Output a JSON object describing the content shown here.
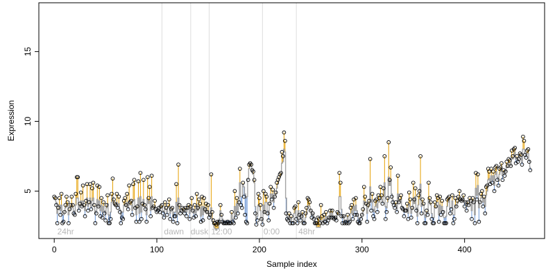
{
  "chart_data": {
    "type": "scatter",
    "title": "",
    "xlabel": "Sample index",
    "ylabel": "Expression",
    "xlim": [
      -15,
      478
    ],
    "ylim": [
      1.6,
      18.5
    ],
    "x_ticks": [
      0,
      100,
      200,
      300,
      400
    ],
    "y_ticks": [
      5,
      10,
      15
    ],
    "grid": false,
    "legend": "none",
    "colors": {
      "points_stroke": "#000000",
      "above_fit": "#e69f00",
      "below_fit": "#6a95d6",
      "fit_line": "#999999",
      "divider": "#dddddd",
      "phase_text": "#b8b8b8"
    },
    "dividers": [
      105,
      133,
      151,
      203,
      236
    ],
    "phase_labels": [
      {
        "x": 3,
        "text": "24hr"
      },
      {
        "x": 107,
        "text": "dawn"
      },
      {
        "x": 133,
        "text": "dusk"
      },
      {
        "x": 153,
        "text": "12:00"
      },
      {
        "x": 204,
        "text": "0:00"
      },
      {
        "x": 238,
        "text": "48hr"
      }
    ],
    "series": [
      {
        "values": [
          4.6,
          4.5,
          4.0,
          2.7,
          3.8,
          4.5,
          3.3,
          4.8,
          2.7,
          2.8,
          3.5,
          4.0,
          4.6,
          4.2,
          2.7,
          3.7,
          4.0,
          4.6,
          4.0,
          3.4,
          3.3,
          4.8,
          6.0,
          6.0,
          3.6,
          4.1,
          4.9,
          3.9,
          5.4,
          4.0,
          3.2,
          4.3,
          5.5,
          3.6,
          4.2,
          5.5,
          3.7,
          5.2,
          5.6,
          4.0,
          2.7,
          3.4,
          5.4,
          3.9,
          5.3,
          3.2,
          4.5,
          3.1,
          4.2,
          3.4,
          2.9,
          4.0,
          4.7,
          2.7,
          2.7,
          3.0,
          4.8,
          5.9,
          4.4,
          4.1,
          4.0,
          4.8,
          3.8,
          4.6,
          3.5,
          2.7,
          3.1,
          3.0,
          4.3,
          4.5,
          4.0,
          4.8,
          3.7,
          5.4,
          4.2,
          4.3,
          3.3,
          5.5,
          5.8,
          3.8,
          2.8,
          3.9,
          5.7,
          2.8,
          6.3,
          3.0,
          4.1,
          5.8,
          4.0,
          3.7,
          2.8,
          6.0,
          4.5,
          5.3,
          3.2,
          6.1,
          3.8,
          3.9,
          4.3,
          3.7,
          3.5,
          3.6,
          3.8,
          3.5,
          3.9,
          4.0,
          3.4,
          3.1,
          4.2,
          3.8,
          3.3,
          4.0,
          4.4,
          3.0,
          3.7,
          3.8,
          2.8,
          3.2,
          3.2,
          5.5,
          2.7,
          6.9,
          4.0,
          3.4,
          3.6,
          3.8,
          3.7,
          3.4,
          3.8,
          3.2,
          3.8,
          4.0,
          3.0,
          3.9,
          4.5,
          3.6,
          3.1,
          4.0,
          3.2,
          4.8,
          3.8,
          4.4,
          4.1,
          2.8,
          4.6,
          2.9,
          4.5,
          3.7,
          4.1,
          3.5,
          4.0,
          3.1,
          3.3,
          6.2,
          3.5,
          2.9,
          2.7,
          2.7,
          2.6,
          2.8,
          2.7,
          2.8,
          4.0,
          3.3,
          2.8,
          2.7,
          2.7,
          2.7,
          2.7,
          2.8,
          2.7,
          2.7,
          2.7,
          3.5,
          2.8,
          2.7,
          5.0,
          3.1,
          4.5,
          3.4,
          4.2,
          6.6,
          4.0,
          3.8,
          5.6,
          4.6,
          3.3,
          2.8,
          2.7,
          5.8,
          6.9,
          7.0,
          6.9,
          6.5,
          6.4,
          5.8,
          3.4,
          2.6,
          2.9,
          4.8,
          4.5,
          4.0,
          3.0,
          2.6,
          5.0,
          3.5,
          4.8,
          4.6,
          3.4,
          2.9,
          4.1,
          5.3,
          4.4,
          5.1,
          3.8,
          4.6,
          4.9,
          5.6,
          5.8,
          6.0,
          6.2,
          6.3,
          7.8,
          7.5,
          9.2,
          8.6,
          3.4,
          3.0,
          2.9,
          3.4,
          2.7,
          3.2,
          2.7,
          2.7,
          3.8,
          3.9,
          3.0,
          2.7,
          4.2,
          3.3,
          2.9,
          3.2,
          3.5,
          2.7,
          2.7,
          3.4,
          3.8,
          4.5,
          4.4,
          4.2,
          3.6,
          3.1,
          3.4,
          3.0,
          2.7,
          2.7,
          2.7,
          3.1,
          3.0,
          2.7,
          4.0,
          3.2,
          2.7,
          3.3,
          2.8,
          3.5,
          2.7,
          2.9,
          3.1,
          3.6,
          3.1,
          3.6,
          3.1,
          3.0,
          3.1,
          2.9,
          3.5,
          3.4,
          6.3,
          5.6,
          3.2,
          2.7,
          3.2,
          2.7,
          2.8,
          2.7,
          3.3,
          2.7,
          2.8,
          3.8,
          4.0,
          3.0,
          4.4,
          3.3,
          4.5,
          3.3,
          2.8,
          2.7,
          2.7,
          3.0,
          3.3,
          3.7,
          5.3,
          4.6,
          4.1,
          2.8,
          4.0,
          4.3,
          7.3,
          3.6,
          4.8,
          3.2,
          3.0,
          4.3,
          4.4,
          3.5,
          4.7,
          4.5,
          5.3,
          4.7,
          4.1,
          5.2,
          7.5,
          3.0,
          3.5,
          4.5,
          8.5,
          5.8,
          6.7,
          4.6,
          4.2,
          4.0,
          3.8,
          4.2,
          3.5,
          6.1,
          4.2,
          4.5,
          4.7,
          3.8,
          3.7,
          3.2,
          3.6,
          3.6,
          4.1,
          3.0,
          4.9,
          4.4,
          3.1,
          3.8,
          5.6,
          4.4,
          5.2,
          3.6,
          2.7,
          4.7,
          5.0,
          7.5,
          3.4,
          4.4,
          4.1,
          2.7,
          2.7,
          3.6,
          3.3,
          5.6,
          4.5,
          4.2,
          3.0,
          2.7,
          2.7,
          4.2,
          3.9,
          4.7,
          4.5,
          2.8,
          4.6,
          3.3,
          4.3,
          3.5,
          2.7,
          2.7,
          2.7,
          4.4,
          4.5,
          4.6,
          3.4,
          3.7,
          4.7,
          2.7,
          3.0,
          4.5,
          3.9,
          4.3,
          4.6,
          5.0,
          4.4,
          4.3,
          4.4,
          4.7,
          3.9,
          4.2,
          3.6,
          4.2,
          4.0,
          4.5,
          4.3,
          3.0,
          4.5,
          4.2,
          2.7,
          6.3,
          4.4,
          6.2,
          2.8,
          4.2,
          4.8,
          5.0,
          3.9,
          4.6,
          3.4,
          5.3,
          5.4,
          6.6,
          6.4,
          5.5,
          6.6,
          5.6,
          6.4,
          5.0,
          6.7,
          6.8,
          5.8,
          5.4,
          6.6,
          6.7,
          7.0,
          5.8,
          6.5,
          6.1,
          6.4,
          7.1,
          6.8,
          7.3,
          7.2,
          6.8,
          7.9,
          7.5,
          8.0,
          8.1,
          7.0,
          7.5,
          7.1,
          7.3,
          7.7,
          7.6,
          6.9,
          8.9,
          8.6,
          7.6,
          7.4,
          7.9,
          8.0,
          7.1,
          6.5
        ],
        "fit": [
          4.4,
          4.4,
          4.2,
          3.4,
          3.7,
          4.0,
          3.6,
          4.0,
          3.3,
          3.3,
          3.5,
          3.8,
          4.0,
          3.9,
          3.3,
          3.6,
          3.8,
          4.0,
          3.8,
          3.6,
          3.5,
          4.0,
          4.5,
          4.5,
          3.8,
          4.0,
          4.3,
          3.9,
          4.3,
          3.9,
          3.6,
          4.0,
          4.5,
          3.9,
          4.1,
          4.5,
          3.9,
          4.3,
          4.5,
          3.9,
          3.4,
          3.6,
          4.4,
          3.9,
          4.3,
          3.6,
          4.0,
          3.5,
          3.9,
          3.6,
          3.4,
          3.8,
          4.1,
          3.3,
          3.2,
          3.5,
          4.2,
          4.6,
          4.1,
          4.0,
          3.9,
          4.2,
          3.9,
          4.1,
          3.7,
          3.3,
          3.5,
          3.5,
          4.0,
          4.1,
          3.9,
          4.2,
          3.8,
          4.3,
          4.0,
          4.0,
          3.6,
          4.3,
          4.4,
          3.8,
          3.3,
          3.8,
          4.5,
          3.4,
          4.6,
          3.5,
          3.9,
          4.4,
          3.9,
          3.8,
          3.3,
          4.4,
          4.1,
          4.3,
          3.6,
          4.6,
          3.8,
          3.8,
          3.9,
          3.7,
          3.6,
          3.7,
          3.8,
          3.6,
          3.8,
          3.8,
          3.6,
          3.5,
          3.9,
          3.7,
          3.5,
          3.8,
          3.9,
          3.4,
          3.7,
          3.7,
          3.3,
          3.5,
          3.5,
          4.2,
          3.3,
          4.5,
          3.7,
          3.5,
          3.6,
          3.7,
          3.6,
          3.5,
          3.7,
          3.5,
          3.7,
          3.8,
          3.4,
          3.7,
          3.9,
          3.6,
          3.4,
          3.7,
          3.4,
          4.0,
          3.6,
          3.9,
          3.8,
          3.2,
          3.9,
          3.3,
          3.9,
          3.5,
          3.8,
          3.4,
          3.6,
          3.3,
          3.2,
          3.8,
          3.0,
          2.6,
          2.4,
          2.3,
          2.2,
          2.3,
          2.3,
          3.0,
          3.6,
          3.2,
          3.0,
          2.8,
          2.9,
          2.9,
          2.9,
          2.9,
          2.9,
          2.9,
          2.9,
          3.3,
          3.0,
          3.0,
          3.9,
          3.3,
          4.1,
          3.6,
          4.3,
          5.6,
          4.6,
          4.6,
          5.5,
          5.3,
          4.8,
          4.5,
          4.6,
          5.9,
          6.6,
          6.9,
          6.8,
          6.5,
          6.2,
          5.6,
          3.9,
          3.0,
          3.2,
          4.0,
          3.9,
          3.6,
          3.0,
          2.8,
          4.0,
          3.4,
          4.2,
          4.2,
          3.6,
          3.3,
          4.0,
          4.8,
          4.5,
          4.8,
          4.2,
          4.6,
          4.8,
          5.2,
          5.5,
          5.8,
          6.0,
          6.1,
          7.0,
          7.1,
          8.0,
          7.8,
          4.5,
          3.2,
          3.0,
          3.2,
          2.9,
          3.1,
          2.8,
          2.8,
          3.4,
          3.6,
          3.2,
          3.0,
          3.6,
          3.3,
          3.1,
          3.2,
          3.3,
          2.9,
          2.8,
          3.1,
          3.4,
          3.9,
          4.0,
          3.9,
          3.6,
          3.3,
          3.4,
          3.2,
          2.9,
          2.6,
          2.4,
          2.4,
          2.4,
          2.4,
          2.9,
          2.9,
          2.7,
          3.0,
          2.9,
          3.2,
          2.9,
          3.0,
          3.1,
          3.4,
          3.2,
          3.4,
          3.2,
          3.1,
          3.1,
          3.0,
          3.3,
          3.3,
          4.6,
          4.6,
          3.7,
          3.1,
          3.2,
          2.9,
          2.9,
          2.9,
          3.1,
          2.9,
          2.9,
          3.4,
          3.6,
          3.3,
          3.9,
          3.6,
          4.0,
          3.6,
          3.2,
          3.0,
          3.0,
          3.1,
          3.3,
          3.5,
          4.3,
          4.2,
          4.0,
          3.4,
          3.8,
          4.0,
          5.3,
          4.2,
          4.4,
          3.7,
          3.5,
          3.9,
          4.1,
          3.8,
          4.3,
          4.2,
          4.6,
          4.4,
          4.2,
          4.6,
          5.6,
          3.9,
          3.8,
          4.2,
          6.0,
          5.4,
          5.8,
          4.8,
          4.4,
          4.1,
          3.9,
          4.0,
          3.7,
          4.8,
          4.2,
          4.3,
          4.4,
          3.9,
          3.8,
          3.5,
          3.6,
          3.6,
          3.8,
          3.4,
          4.1,
          3.9,
          3.4,
          3.7,
          4.5,
          4.1,
          4.6,
          3.8,
          3.2,
          4.0,
          4.4,
          5.5,
          3.9,
          4.1,
          4.0,
          3.3,
          3.1,
          3.5,
          3.4,
          4.4,
          4.2,
          4.0,
          3.4,
          3.1,
          3.1,
          3.8,
          3.8,
          4.2,
          4.2,
          3.3,
          4.0,
          3.5,
          3.9,
          3.6,
          3.1,
          3.1,
          3.2,
          3.9,
          4.2,
          4.4,
          3.8,
          3.8,
          4.3,
          3.3,
          3.3,
          4.0,
          3.9,
          4.1,
          4.3,
          4.6,
          4.4,
          4.3,
          4.4,
          4.5,
          4.2,
          4.2,
          3.9,
          4.1,
          4.0,
          4.3,
          4.3,
          3.6,
          4.3,
          4.2,
          3.3,
          5.2,
          4.7,
          5.4,
          3.8,
          4.2,
          4.5,
          4.7,
          4.2,
          4.5,
          3.9,
          4.7,
          5.0,
          5.8,
          5.9,
          5.6,
          6.1,
          5.8,
          6.1,
          5.4,
          6.2,
          6.4,
          6.0,
          5.7,
          6.2,
          6.4,
          6.7,
          6.1,
          6.4,
          6.2,
          6.4,
          6.8,
          6.7,
          7.0,
          7.0,
          6.8,
          7.4,
          7.3,
          7.6,
          7.8,
          7.3,
          7.4,
          7.2,
          7.3,
          7.5,
          7.5,
          7.1,
          8.0,
          8.0,
          7.7,
          7.5,
          7.7,
          7.7,
          7.2,
          6.7
        ]
      }
    ]
  }
}
